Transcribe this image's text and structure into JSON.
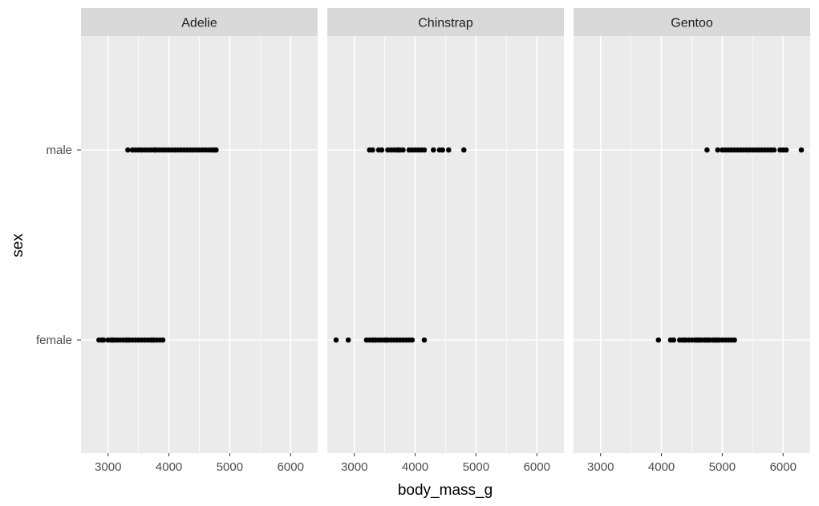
{
  "chart_data": {
    "type": "scatter",
    "facet_variable": "species",
    "xlabel": "body_mass_g",
    "ylabel": "sex",
    "xlim": [
      2555,
      6445
    ],
    "x_ticks": [
      3000,
      4000,
      5000,
      6000
    ],
    "x_minor_ticks": [
      3500,
      4500,
      5500
    ],
    "y_categories": [
      "female",
      "male"
    ],
    "grid": true,
    "panel_background": "#ebebeb",
    "strip_background": "#d9d9d9",
    "point_color": "#000000",
    "panels": [
      {
        "label": "Adelie",
        "series": [
          {
            "category": "male",
            "x": [
              3325,
              3400,
              3450,
              3500,
              3550,
              3600,
              3650,
              3700,
              3750,
              3775,
              3800,
              3850,
              3900,
              3950,
              4000,
              4050,
              4100,
              4150,
              4200,
              4250,
              4300,
              4350,
              4400,
              4450,
              4500,
              4550,
              4600,
              4650,
              4700,
              4725,
              4750,
              4775
            ]
          },
          {
            "category": "female",
            "x": [
              2850,
              2900,
              2925,
              3000,
              3050,
              3075,
              3100,
              3150,
              3200,
              3250,
              3300,
              3325,
              3350,
              3400,
              3450,
              3500,
              3550,
              3600,
              3650,
              3700,
              3725,
              3750,
              3800,
              3850,
              3900
            ]
          }
        ]
      },
      {
        "label": "Chinstrap",
        "series": [
          {
            "category": "male",
            "x": [
              3250,
              3300,
              3400,
              3450,
              3550,
              3600,
              3650,
              3700,
              3725,
              3750,
              3800,
              3900,
              3950,
              4000,
              4050,
              4100,
              4150,
              4300,
              4400,
              4450,
              4550,
              4800
            ]
          },
          {
            "category": "female",
            "x": [
              2700,
              2900,
              3200,
              3250,
              3300,
              3325,
              3350,
              3400,
              3450,
              3500,
              3525,
              3550,
              3600,
              3650,
              3700,
              3750,
              3800,
              3850,
              3900,
              3950,
              4150
            ]
          }
        ]
      },
      {
        "label": "Gentoo",
        "series": [
          {
            "category": "male",
            "x": [
              4750,
              4925,
              5000,
              5050,
              5100,
              5150,
              5200,
              5250,
              5300,
              5350,
              5400,
              5450,
              5500,
              5550,
              5600,
              5650,
              5700,
              5750,
              5800,
              5850,
              5950,
              6000,
              6050,
              6300
            ]
          },
          {
            "category": "female",
            "x": [
              3950,
              4150,
              4200,
              4300,
              4350,
              4375,
              4400,
              4450,
              4500,
              4550,
              4575,
              4600,
              4625,
              4650,
              4700,
              4725,
              4750,
              4775,
              4800,
              4850,
              4875,
              4900,
              4925,
              4950,
              5000,
              5050,
              5100,
              5150,
              5200
            ]
          }
        ]
      }
    ]
  }
}
